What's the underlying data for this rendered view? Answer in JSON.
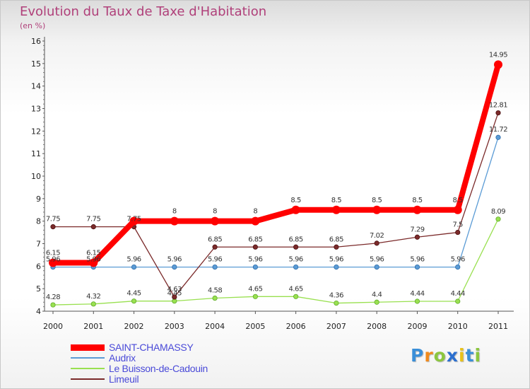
{
  "chart_data": {
    "type": "line",
    "title": "Evolution du Taux de Taxe d'Habitation",
    "subtitle": "(en %)",
    "xlabel": "",
    "ylabel": "",
    "x": [
      "2000",
      "2001",
      "2002",
      "2003",
      "2004",
      "2005",
      "2006",
      "2007",
      "2008",
      "2009",
      "2010",
      "2011"
    ],
    "ylim": [
      4,
      16
    ],
    "yticks": [
      "4",
      "5",
      "6",
      "7",
      "8",
      "9",
      "10",
      "11",
      "12",
      "13",
      "14",
      "15",
      "16"
    ],
    "grid": false,
    "legend_position": "bottom-left",
    "series": [
      {
        "name": "SAINT-CHAMASSY",
        "color": "#ff0000",
        "values": [
          6.15,
          6.15,
          8,
          8,
          8,
          8,
          8.5,
          8.5,
          8.5,
          8.5,
          8.5,
          14.95
        ],
        "labels": [
          "6.15",
          "6.15",
          "",
          "8",
          "8",
          "8",
          "8.5",
          "8.5",
          "8.5",
          "8.5",
          "8.5",
          "14.95"
        ]
      },
      {
        "name": "Audrix",
        "color": "#5b9bd5",
        "values": [
          5.96,
          5.96,
          5.96,
          5.96,
          5.96,
          5.96,
          5.96,
          5.96,
          5.96,
          5.96,
          5.96,
          11.72
        ],
        "labels": [
          "5.96",
          "5.96",
          "5.96",
          "5.96",
          "5.96",
          "5.96",
          "5.96",
          "5.96",
          "5.96",
          "5.96",
          "5.96",
          "11.72"
        ]
      },
      {
        "name": "Le Buisson-de-Cadouin",
        "color": "#99e050",
        "values": [
          4.28,
          4.32,
          4.45,
          4.45,
          4.58,
          4.65,
          4.65,
          4.36,
          4.4,
          4.44,
          4.44,
          8.09
        ],
        "labels": [
          "4.28",
          "4.32",
          "4.45",
          "4.45",
          "4.58",
          "4.65",
          "4.65",
          "4.36",
          "4.4",
          "4.44",
          "4.44",
          "8.09"
        ]
      },
      {
        "name": "Limeuil",
        "color": "#7b2a2a",
        "values": [
          7.75,
          7.75,
          7.75,
          4.63,
          6.85,
          6.85,
          6.85,
          6.85,
          7.02,
          7.29,
          7.5,
          12.81
        ],
        "labels": [
          "7.75",
          "7.75",
          "7.75",
          "4.63",
          "6.85",
          "6.85",
          "6.85",
          "6.85",
          "7.02",
          "7.29",
          "7.5",
          "12.81"
        ]
      }
    ]
  },
  "logo": {
    "letters": [
      "P",
      "r",
      "o",
      "x",
      "i",
      "t",
      "i"
    ],
    "colors": [
      "#3a8fd8",
      "#f08a1c",
      "#8cc63f",
      "#2b6fcf",
      "#e8c21a",
      "#3a8fd8",
      "#8cc63f"
    ]
  }
}
